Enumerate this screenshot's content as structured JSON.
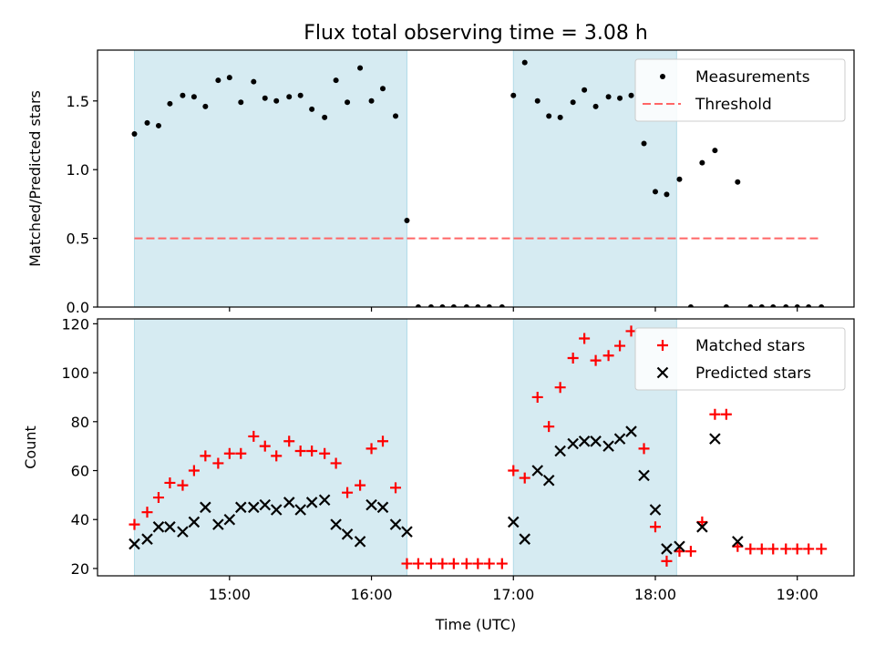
{
  "title": "Flux total observing time = 3.08 h",
  "colors": {
    "shade": "#add8e6",
    "measurements": "#000000",
    "threshold": "#ff6666",
    "matched": "#ff0000",
    "predicted": "#000000"
  },
  "chart_data": [
    {
      "type": "scatter",
      "ylabel": "Matched/Predicted stars",
      "ylim": [
        0,
        1.87
      ],
      "xlim_hours": [
        14.07,
        19.4
      ],
      "yticks": [
        0.0,
        0.5,
        1.0,
        1.5
      ],
      "ytick_labels": [
        "0.0",
        "0.5",
        "1.0",
        "1.5"
      ],
      "shaded_spans_hours": [
        [
          14.33,
          16.25
        ],
        [
          17.0,
          18.15
        ]
      ],
      "legend": {
        "placement": "top-right",
        "items": [
          "Measurements",
          "Threshold"
        ]
      },
      "series": [
        {
          "name": "Measurements",
          "marker": "dot",
          "points": [
            [
              14.33,
              1.26
            ],
            [
              14.42,
              1.34
            ],
            [
              14.5,
              1.32
            ],
            [
              14.58,
              1.48
            ],
            [
              14.67,
              1.54
            ],
            [
              14.75,
              1.53
            ],
            [
              14.83,
              1.46
            ],
            [
              14.92,
              1.65
            ],
            [
              15.0,
              1.67
            ],
            [
              15.08,
              1.49
            ],
            [
              15.17,
              1.64
            ],
            [
              15.25,
              1.52
            ],
            [
              15.33,
              1.5
            ],
            [
              15.42,
              1.53
            ],
            [
              15.5,
              1.54
            ],
            [
              15.58,
              1.44
            ],
            [
              15.67,
              1.38
            ],
            [
              15.75,
              1.65
            ],
            [
              15.83,
              1.49
            ],
            [
              15.92,
              1.74
            ],
            [
              16.0,
              1.5
            ],
            [
              16.08,
              1.59
            ],
            [
              16.17,
              1.39
            ],
            [
              16.25,
              0.63
            ],
            [
              16.33,
              0.0
            ],
            [
              16.42,
              0.0
            ],
            [
              16.5,
              0.0
            ],
            [
              16.58,
              0.0
            ],
            [
              16.67,
              0.0
            ],
            [
              16.75,
              0.0
            ],
            [
              16.83,
              0.0
            ],
            [
              16.92,
              0.0
            ],
            [
              17.0,
              1.54
            ],
            [
              17.08,
              1.78
            ],
            [
              17.17,
              1.5
            ],
            [
              17.25,
              1.39
            ],
            [
              17.33,
              1.38
            ],
            [
              17.42,
              1.49
            ],
            [
              17.5,
              1.58
            ],
            [
              17.58,
              1.46
            ],
            [
              17.67,
              1.53
            ],
            [
              17.75,
              1.52
            ],
            [
              17.83,
              1.54
            ],
            [
              17.92,
              1.19
            ],
            [
              18.0,
              0.84
            ],
            [
              18.08,
              0.82
            ],
            [
              18.17,
              0.93
            ],
            [
              18.25,
              0.0
            ],
            [
              18.33,
              1.05
            ],
            [
              18.42,
              1.14
            ],
            [
              18.5,
              0.0
            ],
            [
              18.58,
              0.91
            ],
            [
              18.67,
              0.0
            ],
            [
              18.75,
              0.0
            ],
            [
              18.83,
              0.0
            ],
            [
              18.92,
              0.0
            ],
            [
              19.0,
              0.0
            ],
            [
              19.08,
              0.0
            ],
            [
              19.17,
              0.0
            ]
          ]
        },
        {
          "name": "Threshold",
          "marker": "dashed-line",
          "points": [
            [
              14.33,
              0.5
            ],
            [
              19.17,
              0.5
            ]
          ]
        }
      ]
    },
    {
      "type": "scatter",
      "xlabel": "Time (UTC)",
      "ylabel": "Count",
      "ylim": [
        17,
        122
      ],
      "xlim_hours": [
        14.07,
        19.4
      ],
      "xticks_hours": [
        15,
        16,
        17,
        18,
        19
      ],
      "xtick_labels": [
        "15:00",
        "16:00",
        "17:00",
        "18:00",
        "19:00"
      ],
      "yticks": [
        20,
        40,
        60,
        80,
        100,
        120
      ],
      "ytick_labels": [
        "20",
        "40",
        "60",
        "80",
        "100",
        "120"
      ],
      "shaded_spans_hours": [
        [
          14.33,
          16.25
        ],
        [
          17.0,
          18.15
        ]
      ],
      "legend": {
        "placement": "top-right",
        "items": [
          "Matched stars",
          "Predicted stars"
        ]
      },
      "series": [
        {
          "name": "Matched stars",
          "marker": "plus",
          "points": [
            [
              14.33,
              38
            ],
            [
              14.42,
              43
            ],
            [
              14.5,
              49
            ],
            [
              14.58,
              55
            ],
            [
              14.67,
              54
            ],
            [
              14.75,
              60
            ],
            [
              14.83,
              66
            ],
            [
              14.92,
              63
            ],
            [
              15.0,
              67
            ],
            [
              15.08,
              67
            ],
            [
              15.17,
              74
            ],
            [
              15.25,
              70
            ],
            [
              15.33,
              66
            ],
            [
              15.42,
              72
            ],
            [
              15.5,
              68
            ],
            [
              15.58,
              68
            ],
            [
              15.67,
              67
            ],
            [
              15.75,
              63
            ],
            [
              15.83,
              51
            ],
            [
              15.92,
              54
            ],
            [
              16.0,
              69
            ],
            [
              16.08,
              72
            ],
            [
              16.17,
              53
            ],
            [
              16.25,
              22
            ],
            [
              16.33,
              22
            ],
            [
              16.42,
              22
            ],
            [
              16.5,
              22
            ],
            [
              16.58,
              22
            ],
            [
              16.67,
              22
            ],
            [
              16.75,
              22
            ],
            [
              16.83,
              22
            ],
            [
              16.92,
              22
            ],
            [
              17.0,
              60
            ],
            [
              17.08,
              57
            ],
            [
              17.17,
              90
            ],
            [
              17.25,
              78
            ],
            [
              17.33,
              94
            ],
            [
              17.42,
              106
            ],
            [
              17.5,
              114
            ],
            [
              17.58,
              105
            ],
            [
              17.67,
              107
            ],
            [
              17.75,
              111
            ],
            [
              17.83,
              117
            ],
            [
              17.92,
              69
            ],
            [
              18.0,
              37
            ],
            [
              18.08,
              23
            ],
            [
              18.17,
              27
            ],
            [
              18.25,
              27
            ],
            [
              18.33,
              39
            ],
            [
              18.42,
              83
            ],
            [
              18.5,
              83
            ],
            [
              18.58,
              29
            ],
            [
              18.67,
              28
            ],
            [
              18.75,
              28
            ],
            [
              18.83,
              28
            ],
            [
              18.92,
              28
            ],
            [
              19.0,
              28
            ],
            [
              19.08,
              28
            ],
            [
              19.17,
              28
            ]
          ]
        },
        {
          "name": "Predicted stars",
          "marker": "x",
          "points": [
            [
              14.33,
              30
            ],
            [
              14.42,
              32
            ],
            [
              14.5,
              37
            ],
            [
              14.58,
              37
            ],
            [
              14.67,
              35
            ],
            [
              14.75,
              39
            ],
            [
              14.83,
              45
            ],
            [
              14.92,
              38
            ],
            [
              15.0,
              40
            ],
            [
              15.08,
              45
            ],
            [
              15.17,
              45
            ],
            [
              15.25,
              46
            ],
            [
              15.33,
              44
            ],
            [
              15.42,
              47
            ],
            [
              15.5,
              44
            ],
            [
              15.58,
              47
            ],
            [
              15.67,
              48
            ],
            [
              15.75,
              38
            ],
            [
              15.83,
              34
            ],
            [
              15.92,
              31
            ],
            [
              16.0,
              46
            ],
            [
              16.08,
              45
            ],
            [
              16.17,
              38
            ],
            [
              16.25,
              35
            ],
            [
              17.0,
              39
            ],
            [
              17.08,
              32
            ],
            [
              17.17,
              60
            ],
            [
              17.25,
              56
            ],
            [
              17.33,
              68
            ],
            [
              17.42,
              71
            ],
            [
              17.5,
              72
            ],
            [
              17.58,
              72
            ],
            [
              17.67,
              70
            ],
            [
              17.75,
              73
            ],
            [
              17.83,
              76
            ],
            [
              17.92,
              58
            ],
            [
              18.0,
              44
            ],
            [
              18.08,
              28
            ],
            [
              18.17,
              29
            ],
            [
              18.33,
              37
            ],
            [
              18.42,
              73
            ],
            [
              18.58,
              31
            ]
          ]
        }
      ]
    }
  ]
}
